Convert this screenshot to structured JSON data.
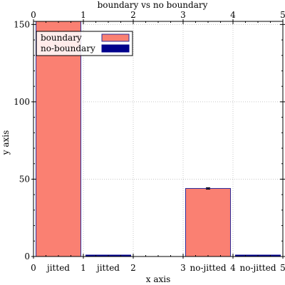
{
  "chart_data": {
    "type": "bar",
    "title": "boundary vs no boundary",
    "xlabel": "x axis",
    "ylabel": "y axis",
    "xlim": [
      0,
      5
    ],
    "ylim": [
      0,
      152
    ],
    "x_ticks": [
      0,
      1,
      2,
      3,
      4,
      5
    ],
    "y_ticks": [
      0,
      50,
      100,
      150
    ],
    "legend": {
      "placement": "top-left"
    },
    "series": [
      {
        "name": "boundary",
        "color": "#fa8072",
        "edge_color": "#2b2b9a",
        "bars": [
          {
            "label": "jitted",
            "x_start": 0.05,
            "x_end": 0.95,
            "value": 152,
            "error": 0
          },
          {
            "label": "no-jitted",
            "x_start": 3.05,
            "x_end": 3.95,
            "value": 44,
            "error": 0.5
          }
        ]
      },
      {
        "name": "no-boundary",
        "color": "#00008b",
        "edge_color": "#00008b",
        "bars": [
          {
            "label": "jitted",
            "x_start": 1.05,
            "x_end": 1.95,
            "value": 0.6,
            "error": 0
          },
          {
            "label": "no-jitted",
            "x_start": 4.05,
            "x_end": 4.95,
            "value": 0.6,
            "error": 0
          }
        ]
      }
    ]
  }
}
